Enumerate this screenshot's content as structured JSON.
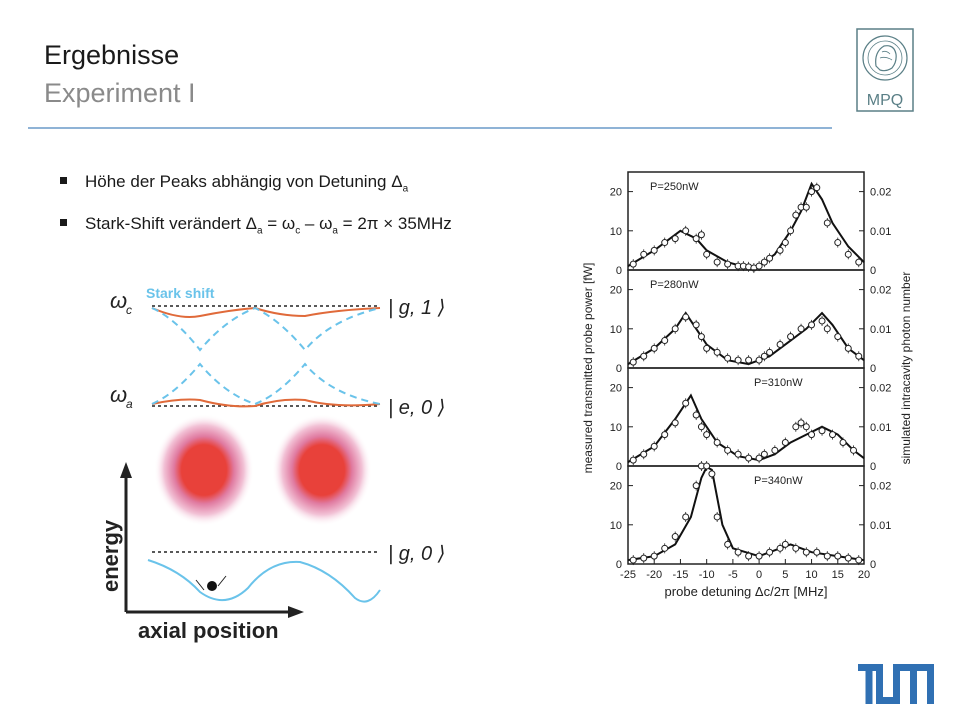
{
  "header": {
    "title": "Ergebnisse",
    "subtitle": "Experiment I",
    "logo_text": "MPQ"
  },
  "bullets": [
    {
      "prefix": "Höhe der Peaks abhängig von Detuning Δ",
      "sub": "a",
      "rest": ""
    },
    {
      "prefix": "Stark-Shift verändert Δ",
      "sub": "a",
      "rest": " = ω",
      "sub2": "c",
      "rest2": " – ω",
      "sub3": "a",
      "rest3": " = 2π × 35MHz"
    }
  ],
  "diagram": {
    "label_wc": "ω",
    "label_wc_sub": "c",
    "label_wa": "ω",
    "label_wa_sub": "a",
    "stark_label": "Stark shift",
    "ket_g1": "| g, 1 ⟩",
    "ket_e0": "| e, 0 ⟩",
    "ket_g0": "| g, 0 ⟩",
    "y_axis": "energy",
    "x_axis": "axial position"
  },
  "chart_data": {
    "type": "scatter",
    "xlabel": "probe detuning Δc/2π [MHz]",
    "ylabel_left": "measured transmitted probe power [fW]",
    "ylabel_right": "simulated intracavity photon number",
    "xlim": [
      -25,
      20
    ],
    "x_ticks": [
      "-25",
      "-20",
      "-15",
      "-10",
      "-5",
      "0",
      "5",
      "10",
      "15",
      "20"
    ],
    "y_ticks": [
      "0",
      "10",
      "20"
    ],
    "y2_ticks": [
      "0",
      "0.01",
      "0.02"
    ],
    "panels": [
      {
        "label": "P=250nW",
        "points": [
          [
            -24,
            1.5
          ],
          [
            -22,
            4
          ],
          [
            -20,
            5
          ],
          [
            -18,
            7
          ],
          [
            -16,
            8
          ],
          [
            -14,
            10
          ],
          [
            -12,
            8
          ],
          [
            -11,
            9
          ],
          [
            -10,
            4
          ],
          [
            -8,
            2
          ],
          [
            -6,
            1.5
          ],
          [
            -4,
            1
          ],
          [
            -3,
            1
          ],
          [
            -2,
            0.8
          ],
          [
            -1,
            0.5
          ],
          [
            0,
            1
          ],
          [
            1,
            2
          ],
          [
            2,
            3
          ],
          [
            4,
            5
          ],
          [
            5,
            7
          ],
          [
            6,
            10
          ],
          [
            7,
            14
          ],
          [
            8,
            16
          ],
          [
            9,
            16
          ],
          [
            10,
            20
          ],
          [
            11,
            21
          ],
          [
            13,
            12
          ],
          [
            15,
            7
          ],
          [
            17,
            4
          ],
          [
            19,
            2
          ]
        ],
        "model": [
          [
            -25,
            1
          ],
          [
            -20,
            5
          ],
          [
            -15,
            10
          ],
          [
            -12,
            8
          ],
          [
            -10,
            5
          ],
          [
            -6,
            2
          ],
          [
            -2,
            0.5
          ],
          [
            0,
            1
          ],
          [
            3,
            4
          ],
          [
            6,
            10
          ],
          [
            8,
            15
          ],
          [
            10,
            22
          ],
          [
            12,
            18
          ],
          [
            14,
            12
          ],
          [
            17,
            6
          ],
          [
            20,
            2
          ]
        ]
      },
      {
        "label": "P=280nW",
        "points": [
          [
            -24,
            1.5
          ],
          [
            -22,
            3
          ],
          [
            -20,
            5
          ],
          [
            -18,
            7
          ],
          [
            -16,
            10
          ],
          [
            -14,
            13
          ],
          [
            -12,
            11
          ],
          [
            -11,
            8
          ],
          [
            -10,
            5
          ],
          [
            -8,
            4
          ],
          [
            -6,
            2.5
          ],
          [
            -4,
            2
          ],
          [
            -2,
            2
          ],
          [
            0,
            2
          ],
          [
            1,
            3
          ],
          [
            2,
            4
          ],
          [
            4,
            6
          ],
          [
            6,
            8
          ],
          [
            8,
            10
          ],
          [
            10,
            11
          ],
          [
            12,
            12
          ],
          [
            13,
            10
          ],
          [
            15,
            8
          ],
          [
            17,
            5
          ],
          [
            19,
            3
          ]
        ],
        "model": [
          [
            -25,
            1
          ],
          [
            -20,
            5
          ],
          [
            -16,
            10
          ],
          [
            -14,
            14
          ],
          [
            -12,
            10
          ],
          [
            -10,
            6
          ],
          [
            -6,
            2
          ],
          [
            -2,
            1
          ],
          [
            2,
            3
          ],
          [
            6,
            7
          ],
          [
            9,
            10
          ],
          [
            12,
            14
          ],
          [
            14,
            11
          ],
          [
            17,
            5
          ],
          [
            20,
            2
          ]
        ]
      },
      {
        "label": "P=310nW",
        "points": [
          [
            -24,
            1.5
          ],
          [
            -22,
            3
          ],
          [
            -20,
            5
          ],
          [
            -18,
            8
          ],
          [
            -16,
            11
          ],
          [
            -14,
            16
          ],
          [
            -12,
            13
          ],
          [
            -11,
            10
          ],
          [
            -10,
            8
          ],
          [
            -8,
            6
          ],
          [
            -6,
            4
          ],
          [
            -4,
            3
          ],
          [
            -2,
            2
          ],
          [
            0,
            2
          ],
          [
            1,
            3
          ],
          [
            3,
            4
          ],
          [
            5,
            6
          ],
          [
            7,
            10
          ],
          [
            8,
            11
          ],
          [
            9,
            10
          ],
          [
            10,
            8
          ],
          [
            12,
            9
          ],
          [
            14,
            8
          ],
          [
            16,
            6
          ],
          [
            18,
            4
          ]
        ],
        "model": [
          [
            -25,
            1
          ],
          [
            -20,
            5
          ],
          [
            -16,
            12
          ],
          [
            -13,
            18
          ],
          [
            -11,
            12
          ],
          [
            -8,
            6
          ],
          [
            -4,
            2.5
          ],
          [
            0,
            1.5
          ],
          [
            3,
            3
          ],
          [
            6,
            6
          ],
          [
            9,
            8
          ],
          [
            12,
            10
          ],
          [
            15,
            8
          ],
          [
            18,
            4
          ],
          [
            20,
            2
          ]
        ]
      },
      {
        "label": "P=340nW",
        "points": [
          [
            -24,
            1
          ],
          [
            -22,
            1.5
          ],
          [
            -20,
            2
          ],
          [
            -18,
            4
          ],
          [
            -16,
            7
          ],
          [
            -14,
            12
          ],
          [
            -12,
            20
          ],
          [
            -11,
            25
          ],
          [
            -10,
            25
          ],
          [
            -9,
            23
          ],
          [
            -8,
            12
          ],
          [
            -6,
            5
          ],
          [
            -4,
            3
          ],
          [
            -2,
            2
          ],
          [
            0,
            2
          ],
          [
            2,
            3
          ],
          [
            4,
            4
          ],
          [
            5,
            5
          ],
          [
            7,
            4
          ],
          [
            9,
            3
          ],
          [
            11,
            3
          ],
          [
            13,
            2
          ],
          [
            15,
            2
          ],
          [
            17,
            1.5
          ],
          [
            19,
            1
          ]
        ],
        "model": [
          [
            -25,
            1
          ],
          [
            -20,
            2
          ],
          [
            -16,
            5
          ],
          [
            -13,
            12
          ],
          [
            -11,
            22
          ],
          [
            -10,
            28
          ],
          [
            -9,
            24
          ],
          [
            -7,
            10
          ],
          [
            -5,
            4
          ],
          [
            0,
            2
          ],
          [
            4,
            4
          ],
          [
            6,
            5
          ],
          [
            10,
            3
          ],
          [
            15,
            2
          ],
          [
            20,
            1
          ]
        ]
      }
    ]
  }
}
